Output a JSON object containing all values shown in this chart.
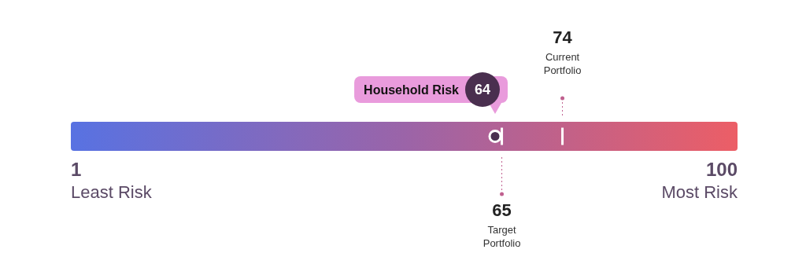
{
  "chart_data": {
    "type": "other",
    "categories": [
      "Household Risk",
      "Target Portfolio",
      "Current Portfolio"
    ],
    "values": [
      64,
      65,
      74
    ],
    "data_labels": true,
    "annotations": [
      "1",
      "Least Risk",
      "100",
      "Most Risk"
    ]
  }
}
